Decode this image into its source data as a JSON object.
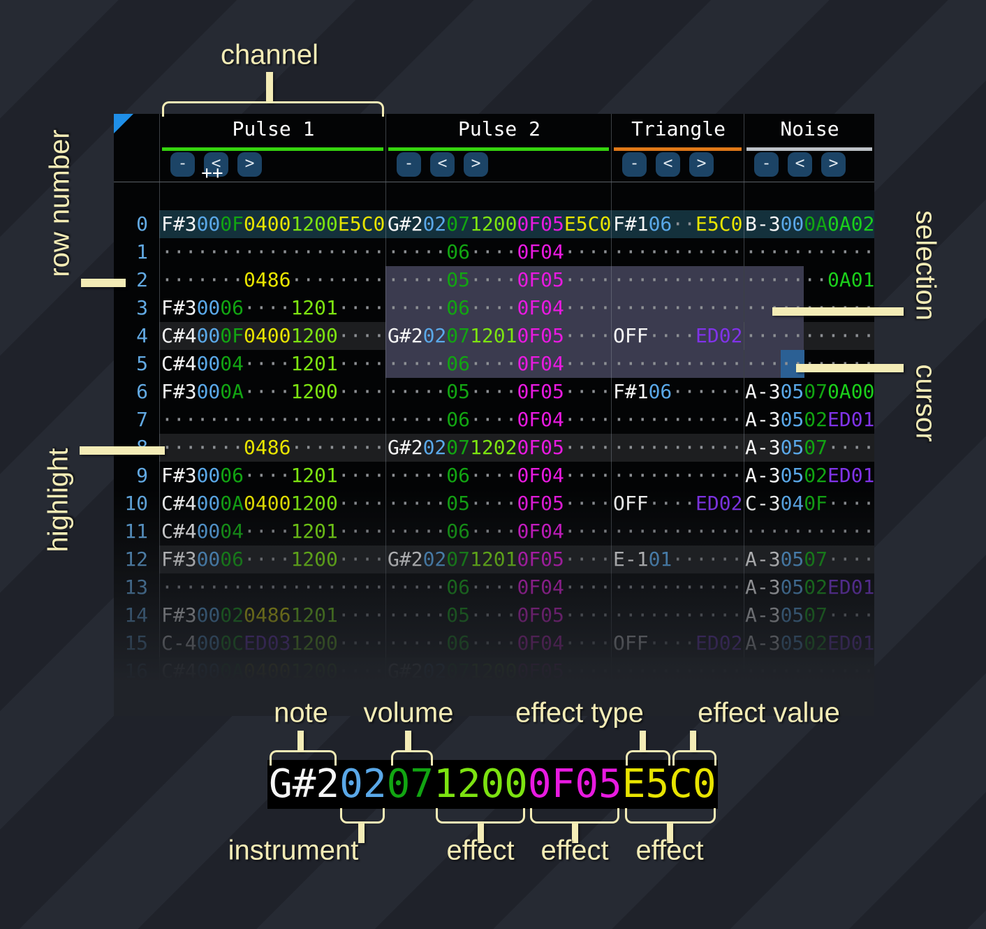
{
  "labels": {
    "channel": "channel",
    "row_number": "row number",
    "selection": "selection",
    "cursor": "cursor",
    "highlight": "highlight"
  },
  "header": {
    "corner": "++",
    "channels": [
      {
        "name": "Pulse 1",
        "underline_color": "#35d40e"
      },
      {
        "name": "Pulse 2",
        "underline_color": "#35d40e"
      },
      {
        "name": "Triangle",
        "underline_color": "#e07818"
      },
      {
        "name": "Noise",
        "underline_color": "#bcc1c7"
      }
    ],
    "buttons": [
      "-",
      "<",
      ">"
    ]
  },
  "tracker": {
    "rows": [
      {
        "n": "0",
        "c": "b0",
        "p1": [
          [
            "F#3",
            "n"
          ],
          [
            "00",
            "i"
          ],
          [
            "0F",
            "v"
          ],
          [
            "0400",
            "y"
          ],
          [
            "1200",
            "l"
          ],
          [
            "E5C0",
            "y"
          ]
        ],
        "p2": [
          [
            "G#2",
            "n"
          ],
          [
            "02",
            "i"
          ],
          [
            "07",
            "v"
          ],
          [
            "1200",
            "l"
          ],
          [
            "0F05",
            "m"
          ],
          [
            "E5C0",
            "y"
          ]
        ],
        "tri": [
          [
            "F#1",
            "n"
          ],
          [
            "06",
            "i"
          ],
          [
            "··",
            "d"
          ],
          [
            "E5C0",
            "y"
          ]
        ],
        "no": [
          [
            "B-3",
            "n"
          ],
          [
            "00",
            "i"
          ],
          [
            "0A",
            "v"
          ],
          [
            "0A02",
            "g"
          ]
        ]
      },
      {
        "n": "1",
        "p1": [
          [
            "···················",
            "d"
          ]
        ],
        "p2": [
          [
            "·····",
            "d"
          ],
          [
            "06",
            "v"
          ],
          [
            "····",
            "d"
          ],
          [
            "0F04",
            "m"
          ],
          [
            "····",
            "d"
          ]
        ],
        "tri": [
          [
            "···········",
            "d"
          ]
        ],
        "no": [
          [
            "···········",
            "d"
          ]
        ]
      },
      {
        "n": "2",
        "sel": [
          "p2",
          "tri"
        ],
        "ns": true,
        "p1": [
          [
            "·······",
            "d"
          ],
          [
            "0486",
            "y"
          ],
          [
            "········",
            "d"
          ]
        ],
        "p2": [
          [
            "·····",
            "d"
          ],
          [
            "05",
            "v"
          ],
          [
            "····",
            "d"
          ],
          [
            "0F05",
            "m"
          ],
          [
            "····",
            "d"
          ]
        ],
        "tri": [
          [
            "···········",
            "d"
          ]
        ],
        "no": [
          [
            "·······",
            "d"
          ],
          [
            "0A01",
            "g"
          ]
        ]
      },
      {
        "n": "3",
        "sel": [
          "p2",
          "tri"
        ],
        "ns": true,
        "p1": [
          [
            "F#3",
            "n"
          ],
          [
            "00",
            "i"
          ],
          [
            "06",
            "v"
          ],
          [
            "····",
            "d"
          ],
          [
            "1201",
            "l"
          ],
          [
            "····",
            "d"
          ]
        ],
        "p2": [
          [
            "·····",
            "d"
          ],
          [
            "06",
            "v"
          ],
          [
            "····",
            "d"
          ],
          [
            "0F04",
            "m"
          ],
          [
            "····",
            "d"
          ]
        ],
        "tri": [
          [
            "···········",
            "d"
          ]
        ],
        "no": [
          [
            "···········",
            "d"
          ]
        ]
      },
      {
        "n": "4",
        "c": "b",
        "sel": [
          "p2",
          "tri"
        ],
        "ns": true,
        "p1": [
          [
            "C#4",
            "n"
          ],
          [
            "00",
            "i"
          ],
          [
            "0F",
            "v"
          ],
          [
            "0400",
            "y"
          ],
          [
            "1200",
            "l"
          ],
          [
            "····",
            "d"
          ]
        ],
        "p2": [
          [
            "G#2",
            "n"
          ],
          [
            "02",
            "i"
          ],
          [
            "07",
            "v"
          ],
          [
            "1201",
            "l"
          ],
          [
            "0F05",
            "m"
          ],
          [
            "····",
            "d"
          ]
        ],
        "tri": [
          [
            "OFF",
            "n"
          ],
          [
            "····",
            "d"
          ],
          [
            "ED02",
            "p"
          ]
        ],
        "no": [
          [
            "···········",
            "d"
          ]
        ]
      },
      {
        "n": "5",
        "sel": [
          "p2",
          "tri"
        ],
        "ns": true,
        "cur": true,
        "p1": [
          [
            "C#4",
            "n"
          ],
          [
            "00",
            "i"
          ],
          [
            "04",
            "v"
          ],
          [
            "····",
            "d"
          ],
          [
            "1201",
            "l"
          ],
          [
            "····",
            "d"
          ]
        ],
        "p2": [
          [
            "·····",
            "d"
          ],
          [
            "06",
            "v"
          ],
          [
            "····",
            "d"
          ],
          [
            "0F04",
            "m"
          ],
          [
            "····",
            "d"
          ]
        ],
        "tri": [
          [
            "···········",
            "d"
          ]
        ],
        "no": [
          [
            "···········",
            "d"
          ]
        ]
      },
      {
        "n": "6",
        "p1": [
          [
            "F#3",
            "n"
          ],
          [
            "00",
            "i"
          ],
          [
            "0A",
            "v"
          ],
          [
            "····",
            "d"
          ],
          [
            "1200",
            "l"
          ],
          [
            "····",
            "d"
          ]
        ],
        "p2": [
          [
            "·····",
            "d"
          ],
          [
            "05",
            "v"
          ],
          [
            "····",
            "d"
          ],
          [
            "0F05",
            "m"
          ],
          [
            "····",
            "d"
          ]
        ],
        "tri": [
          [
            "F#1",
            "n"
          ],
          [
            "06",
            "i"
          ],
          [
            "······",
            "d"
          ]
        ],
        "no": [
          [
            "A-3",
            "n"
          ],
          [
            "05",
            "i"
          ],
          [
            "07",
            "v"
          ],
          [
            "0A00",
            "g"
          ]
        ]
      },
      {
        "n": "7",
        "p1": [
          [
            "···················",
            "d"
          ]
        ],
        "p2": [
          [
            "·····",
            "d"
          ],
          [
            "06",
            "v"
          ],
          [
            "····",
            "d"
          ],
          [
            "0F04",
            "m"
          ],
          [
            "····",
            "d"
          ]
        ],
        "tri": [
          [
            "···········",
            "d"
          ]
        ],
        "no": [
          [
            "A-3",
            "n"
          ],
          [
            "05",
            "i"
          ],
          [
            "02",
            "v"
          ],
          [
            "ED01",
            "p"
          ]
        ]
      },
      {
        "n": "8",
        "c": "b",
        "p1": [
          [
            "·······",
            "d"
          ],
          [
            "0486",
            "y"
          ],
          [
            "········",
            "d"
          ]
        ],
        "p2": [
          [
            "G#2",
            "n"
          ],
          [
            "02",
            "i"
          ],
          [
            "07",
            "v"
          ],
          [
            "1202",
            "l"
          ],
          [
            "0F05",
            "m"
          ],
          [
            "····",
            "d"
          ]
        ],
        "tri": [
          [
            "···········",
            "d"
          ]
        ],
        "no": [
          [
            "A-3",
            "n"
          ],
          [
            "05",
            "i"
          ],
          [
            "07",
            "v"
          ],
          [
            "····",
            "d"
          ]
        ]
      },
      {
        "n": "9",
        "p1": [
          [
            "F#3",
            "n"
          ],
          [
            "00",
            "i"
          ],
          [
            "06",
            "v"
          ],
          [
            "····",
            "d"
          ],
          [
            "1201",
            "l"
          ],
          [
            "····",
            "d"
          ]
        ],
        "p2": [
          [
            "·····",
            "d"
          ],
          [
            "06",
            "v"
          ],
          [
            "····",
            "d"
          ],
          [
            "0F04",
            "m"
          ],
          [
            "····",
            "d"
          ]
        ],
        "tri": [
          [
            "···········",
            "d"
          ]
        ],
        "no": [
          [
            "A-3",
            "n"
          ],
          [
            "05",
            "i"
          ],
          [
            "02",
            "v"
          ],
          [
            "ED01",
            "p"
          ]
        ]
      },
      {
        "n": "10",
        "p1": [
          [
            "C#4",
            "n"
          ],
          [
            "00",
            "i"
          ],
          [
            "0A",
            "v"
          ],
          [
            "0400",
            "y"
          ],
          [
            "1200",
            "l"
          ],
          [
            "····",
            "d"
          ]
        ],
        "p2": [
          [
            "·····",
            "d"
          ],
          [
            "05",
            "v"
          ],
          [
            "····",
            "d"
          ],
          [
            "0F05",
            "m"
          ],
          [
            "····",
            "d"
          ]
        ],
        "tri": [
          [
            "OFF",
            "n"
          ],
          [
            "····",
            "d"
          ],
          [
            "ED02",
            "p"
          ]
        ],
        "no": [
          [
            "C-3",
            "n"
          ],
          [
            "04",
            "i"
          ],
          [
            "0F",
            "v"
          ],
          [
            "····",
            "d"
          ]
        ]
      },
      {
        "n": "11",
        "p1": [
          [
            "C#4",
            "n"
          ],
          [
            "00",
            "i"
          ],
          [
            "04",
            "v"
          ],
          [
            "····",
            "d"
          ],
          [
            "1201",
            "l"
          ],
          [
            "····",
            "d"
          ]
        ],
        "p2": [
          [
            "·····",
            "d"
          ],
          [
            "06",
            "v"
          ],
          [
            "····",
            "d"
          ],
          [
            "0F04",
            "m"
          ],
          [
            "····",
            "d"
          ]
        ],
        "tri": [
          [
            "···········",
            "d"
          ]
        ],
        "no": [
          [
            "···········",
            "d"
          ]
        ]
      },
      {
        "n": "12",
        "c": "b",
        "p1": [
          [
            "F#3",
            "n"
          ],
          [
            "00",
            "i"
          ],
          [
            "06",
            "v"
          ],
          [
            "····",
            "d"
          ],
          [
            "1200",
            "l"
          ],
          [
            "····",
            "d"
          ]
        ],
        "p2": [
          [
            "G#2",
            "n"
          ],
          [
            "02",
            "i"
          ],
          [
            "07",
            "v"
          ],
          [
            "1201",
            "l"
          ],
          [
            "0F05",
            "m"
          ],
          [
            "····",
            "d"
          ]
        ],
        "tri": [
          [
            "E-1",
            "n"
          ],
          [
            "01",
            "i"
          ],
          [
            "······",
            "d"
          ]
        ],
        "no": [
          [
            "A-3",
            "n"
          ],
          [
            "05",
            "i"
          ],
          [
            "07",
            "v"
          ],
          [
            "····",
            "d"
          ]
        ]
      },
      {
        "n": "13",
        "p1": [
          [
            "···················",
            "d"
          ]
        ],
        "p2": [
          [
            "·····",
            "d"
          ],
          [
            "06",
            "v"
          ],
          [
            "····",
            "d"
          ],
          [
            "0F04",
            "m"
          ],
          [
            "····",
            "d"
          ]
        ],
        "tri": [
          [
            "···········",
            "d"
          ]
        ],
        "no": [
          [
            "A-3",
            "n"
          ],
          [
            "05",
            "i"
          ],
          [
            "02",
            "v"
          ],
          [
            "ED01",
            "p"
          ]
        ]
      },
      {
        "n": "14",
        "p1": [
          [
            "F#3",
            "n"
          ],
          [
            "00",
            "i"
          ],
          [
            "02",
            "v"
          ],
          [
            "0486",
            "y"
          ],
          [
            "1201",
            "l"
          ],
          [
            "····",
            "d"
          ]
        ],
        "p2": [
          [
            "·····",
            "d"
          ],
          [
            "05",
            "v"
          ],
          [
            "····",
            "d"
          ],
          [
            "0F05",
            "m"
          ],
          [
            "····",
            "d"
          ]
        ],
        "tri": [
          [
            "···········",
            "d"
          ]
        ],
        "no": [
          [
            "A-3",
            "n"
          ],
          [
            "05",
            "i"
          ],
          [
            "07",
            "v"
          ],
          [
            "····",
            "d"
          ]
        ]
      },
      {
        "n": "15",
        "p1": [
          [
            "C-4",
            "n"
          ],
          [
            "00",
            "i"
          ],
          [
            "0C",
            "v"
          ],
          [
            "ED03",
            "p"
          ],
          [
            "1200",
            "l"
          ],
          [
            "····",
            "d"
          ]
        ],
        "p2": [
          [
            "·····",
            "d"
          ],
          [
            "06",
            "v"
          ],
          [
            "····",
            "d"
          ],
          [
            "0F04",
            "m"
          ],
          [
            "····",
            "d"
          ]
        ],
        "tri": [
          [
            "OFF",
            "n"
          ],
          [
            "····",
            "d"
          ],
          [
            "ED02",
            "p"
          ]
        ],
        "no": [
          [
            "A-3",
            "n"
          ],
          [
            "05",
            "i"
          ],
          [
            "02",
            "v"
          ],
          [
            "ED01",
            "p"
          ]
        ]
      },
      {
        "n": "16",
        "c": "b",
        "op": 0.5,
        "p1": [
          [
            "C#4",
            "n"
          ],
          [
            "00",
            "i"
          ],
          [
            "0A",
            "v"
          ],
          [
            "0400",
            "y"
          ],
          [
            "1200",
            "l"
          ],
          [
            "····",
            "d"
          ]
        ],
        "p2": [
          [
            "G#2",
            "n"
          ],
          [
            "02",
            "i"
          ],
          [
            "07",
            "v"
          ],
          [
            "1200",
            "l"
          ],
          [
            "0F05",
            "m"
          ],
          [
            "····",
            "d"
          ]
        ],
        "tri": [
          [
            "···········",
            "d"
          ]
        ],
        "no": [
          [
            "···········",
            "d"
          ]
        ]
      }
    ]
  },
  "breakdown": {
    "cell": [
      [
        "G#2",
        "n"
      ],
      [
        "02",
        "i"
      ],
      [
        "07",
        "v"
      ],
      [
        "1200",
        "l"
      ],
      [
        "0F05",
        "m"
      ],
      [
        "E5C0",
        "y"
      ]
    ],
    "top_labels": [
      "note",
      "volume",
      "effect type",
      "effect value"
    ],
    "bottom_labels": [
      "instrument",
      "effect",
      "effect",
      "effect"
    ]
  },
  "colors": {
    "note": "#f5f5f5",
    "instrument": "#5aa8e8",
    "volume": "#12a512",
    "effect_green": "#1bcf1b",
    "effect_lime": "#7de311",
    "effect_yellow": "#e8e400",
    "effect_magenta": "#e81ae0",
    "effect_purple": "#8033e8",
    "selection_bg": "#3b3b4f",
    "cursor_bg": "#2b6094",
    "row_highlight_bg": "#1d1e20",
    "row_zero_bg": "#14313c",
    "annotation": "#f4ecb6",
    "row_number": "#62a9e2",
    "corner_triangle": "#1f8fe8"
  }
}
